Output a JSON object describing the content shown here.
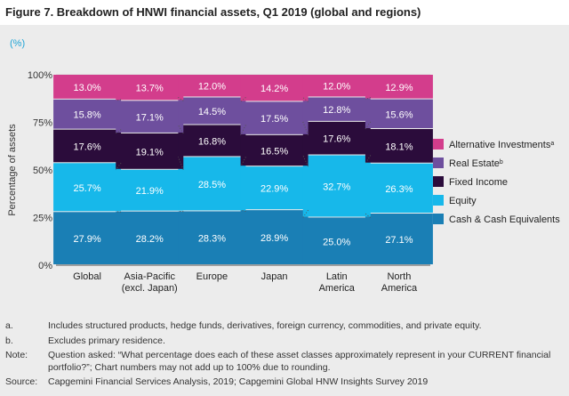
{
  "title": "Figure 7. Breakdown of HNWI financial assets, Q1 2019 (global and regions)",
  "unit_label": "(%)",
  "chart_data": {
    "type": "bar",
    "stacked": true,
    "categories": [
      [
        "Global"
      ],
      [
        "Asia-Pacific",
        "(excl. Japan)"
      ],
      [
        "Europe"
      ],
      [
        "Japan"
      ],
      [
        "Latin",
        "America"
      ],
      [
        "North",
        "America"
      ]
    ],
    "series": [
      {
        "name": "Cash & Cash Equivalents",
        "color": "#1a7fb5",
        "values": [
          27.9,
          28.2,
          28.3,
          28.9,
          25.0,
          27.1
        ],
        "labels": [
          "27.9%",
          "28.2%",
          "28.3%",
          "28.9%",
          "25.0%",
          "27.1%"
        ]
      },
      {
        "name": "Equity",
        "color": "#17b8ea",
        "values": [
          25.7,
          21.9,
          28.5,
          22.9,
          32.7,
          26.3
        ],
        "labels": [
          "25.7%",
          "21.9%",
          "28.5%",
          "22.9%",
          "32.7%",
          "26.3%"
        ]
      },
      {
        "name": "Fixed Income",
        "color": "#2b0c3b",
        "values": [
          17.6,
          19.1,
          16.8,
          16.5,
          17.6,
          18.1
        ],
        "labels": [
          "17.6%",
          "19.1%",
          "16.8%",
          "16.5%",
          "17.6%",
          "18.1%"
        ]
      },
      {
        "name": "Real Estate",
        "sup": "b",
        "color": "#6e4f9e",
        "values": [
          15.8,
          17.1,
          14.5,
          17.5,
          12.8,
          15.6
        ],
        "labels": [
          "15.8%",
          "17.1%",
          "14.5%",
          "17.5%",
          "12.8%",
          "15.6%"
        ]
      },
      {
        "name": "Alternative Investments",
        "sup": "a",
        "color": "#d33d8c",
        "values": [
          13.0,
          13.7,
          12.0,
          14.2,
          12.0,
          12.9
        ],
        "labels": [
          "13.0%",
          "13.7%",
          "12.0%",
          "14.2%",
          "12.0%",
          "12.9%"
        ]
      }
    ],
    "ylabel": "Percentage of assets",
    "ylim": [
      0,
      100
    ],
    "yticks": [
      0,
      25,
      50,
      75,
      100
    ],
    "ytick_labels": [
      "0%",
      "25%",
      "50%",
      "75%",
      "100%"
    ],
    "legend_position": "right",
    "legend_order": [
      4,
      3,
      2,
      1,
      0
    ],
    "connector_lines": "dotted"
  },
  "notes": [
    {
      "label": "a.",
      "text": "Includes structured products, hedge funds, derivatives, foreign currency, commodities, and private equity."
    },
    {
      "label": "b.",
      "text": "Excludes primary residence."
    },
    {
      "label": "Note:",
      "text": "Question asked: “What percentage does each of these asset classes approximately represent in your CURRENT financial portfolio?”; Chart numbers may not add up to 100% due to rounding."
    },
    {
      "label": "Source:",
      "text": "Capgemini Financial Services Analysis, 2019; Capgemini Global HNW Insights Survey 2019"
    }
  ]
}
